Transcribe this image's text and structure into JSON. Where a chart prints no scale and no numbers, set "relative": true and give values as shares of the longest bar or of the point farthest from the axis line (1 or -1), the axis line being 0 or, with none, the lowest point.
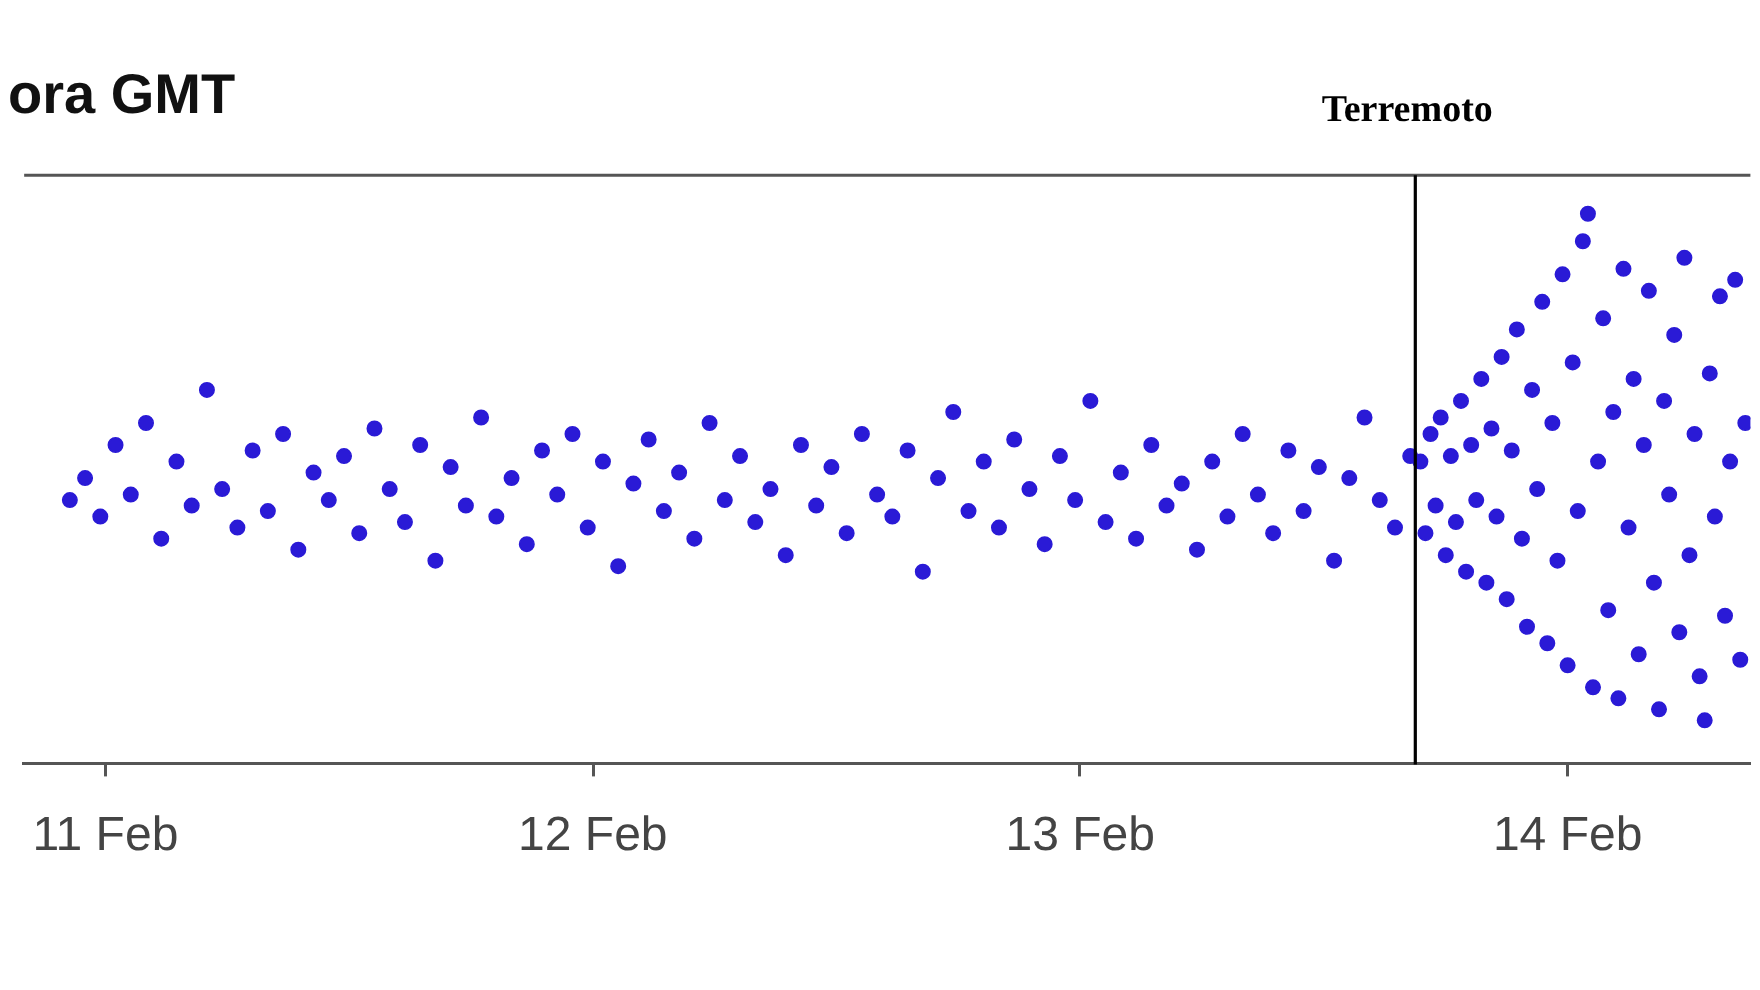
{
  "chart_data": {
    "type": "scatter",
    "title": "ora GMT",
    "x": [
      "--02-10T22:15",
      "--02-10T23:00",
      "--02-10T23:45",
      "--02-11T00:30",
      "--02-11T01:15",
      "--02-11T02:00",
      "--02-11T02:45",
      "--02-11T03:30",
      "--02-11T04:15",
      "--02-11T05:00",
      "--02-11T05:45",
      "--02-11T06:30",
      "--02-11T07:15",
      "--02-11T08:00",
      "--02-11T08:45",
      "--02-11T09:30",
      "--02-11T10:15",
      "--02-11T11:00",
      "--02-11T11:45",
      "--02-11T12:30",
      "--02-11T13:15",
      "--02-11T14:00",
      "--02-11T14:45",
      "--02-11T15:30",
      "--02-11T16:15",
      "--02-11T17:00",
      "--02-11T17:45",
      "--02-11T18:30",
      "--02-11T19:15",
      "--02-11T20:00",
      "--02-11T20:45",
      "--02-11T21:30",
      "--02-11T22:15",
      "--02-11T23:00",
      "--02-11T23:45",
      "--02-12T00:30",
      "--02-12T01:15",
      "--02-12T02:00",
      "--02-12T02:45",
      "--02-12T03:30",
      "--02-12T04:15",
      "--02-12T05:00",
      "--02-12T05:45",
      "--02-12T06:30",
      "--02-12T07:15",
      "--02-12T08:00",
      "--02-12T08:45",
      "--02-12T09:30",
      "--02-12T10:15",
      "--02-12T11:00",
      "--02-12T11:45",
      "--02-12T12:30",
      "--02-12T13:15",
      "--02-12T14:00",
      "--02-12T14:45",
      "--02-12T15:30",
      "--02-12T16:15",
      "--02-12T17:00",
      "--02-12T17:45",
      "--02-12T18:30",
      "--02-12T19:15",
      "--02-12T20:00",
      "--02-12T20:45",
      "--02-12T21:30",
      "--02-12T22:15",
      "--02-12T23:00",
      "--02-12T23:45",
      "--02-13T00:30",
      "--02-13T01:15",
      "--02-13T02:00",
      "--02-13T02:45",
      "--02-13T03:30",
      "--02-13T04:15",
      "--02-13T05:00",
      "--02-13T05:45",
      "--02-13T06:30",
      "--02-13T07:15",
      "--02-13T08:00",
      "--02-13T08:45",
      "--02-13T09:30",
      "--02-13T10:15",
      "--02-13T11:00",
      "--02-13T11:45",
      "--02-13T12:30",
      "--02-13T13:15",
      "--02-13T14:00",
      "--02-13T14:45",
      "--02-13T15:30",
      "--02-13T16:15",
      "--02-13T16:45",
      "--02-13T17:00",
      "--02-13T17:15",
      "--02-13T17:30",
      "--02-13T17:45",
      "--02-13T18:00",
      "--02-13T18:15",
      "--02-13T18:30",
      "--02-13T18:45",
      "--02-13T19:00",
      "--02-13T19:15",
      "--02-13T19:30",
      "--02-13T19:45",
      "--02-13T20:00",
      "--02-13T20:15",
      "--02-13T20:30",
      "--02-13T20:45",
      "--02-13T21:00",
      "--02-13T21:15",
      "--02-13T21:30",
      "--02-13T21:45",
      "--02-13T22:00",
      "--02-13T22:15",
      "--02-13T22:30",
      "--02-13T22:45",
      "--02-13T23:00",
      "--02-13T23:15",
      "--02-13T23:30",
      "--02-13T23:45",
      "--02-14T00:00",
      "--02-14T00:15",
      "--02-14T00:30",
      "--02-14T00:45",
      "--02-14T01:00",
      "--02-14T01:15",
      "--02-14T01:30",
      "--02-14T01:45",
      "--02-14T02:00",
      "--02-14T02:15",
      "--02-14T02:30",
      "--02-14T02:45",
      "--02-14T03:00",
      "--02-14T03:15",
      "--02-14T03:30",
      "--02-14T03:45",
      "--02-14T04:00",
      "--02-14T04:15",
      "--02-14T04:30",
      "--02-14T04:45",
      "--02-14T05:00",
      "--02-14T05:15",
      "--02-14T05:30",
      "--02-14T05:45",
      "--02-14T06:00",
      "--02-14T06:15",
      "--02-14T06:30",
      "--02-14T06:45",
      "--02-14T07:00",
      "--02-14T07:15",
      "--02-14T07:30",
      "--02-14T07:45",
      "--02-14T08:00",
      "--02-14T08:15",
      "--02-14T08:30",
      "--02-14T08:45"
    ],
    "values": [
      0.48,
      0.52,
      0.45,
      0.58,
      0.49,
      0.62,
      0.41,
      0.55,
      0.47,
      0.68,
      0.5,
      0.43,
      0.57,
      0.46,
      0.6,
      0.39,
      0.53,
      0.48,
      0.56,
      0.42,
      0.61,
      0.5,
      0.44,
      0.58,
      0.37,
      0.54,
      0.47,
      0.63,
      0.45,
      0.52,
      0.4,
      0.57,
      0.49,
      0.6,
      0.43,
      0.55,
      0.36,
      0.51,
      0.59,
      0.46,
      0.53,
      0.41,
      0.62,
      0.48,
      0.56,
      0.44,
      0.5,
      0.38,
      0.58,
      0.47,
      0.54,
      0.42,
      0.6,
      0.49,
      0.45,
      0.57,
      0.35,
      0.52,
      0.64,
      0.46,
      0.55,
      0.43,
      0.59,
      0.5,
      0.4,
      0.56,
      0.48,
      0.66,
      0.44,
      0.53,
      0.41,
      0.58,
      0.47,
      0.51,
      0.39,
      0.55,
      0.45,
      0.6,
      0.49,
      0.42,
      0.57,
      0.46,
      0.54,
      0.37,
      0.52,
      0.63,
      0.48,
      0.43,
      0.56,
      0.55,
      0.42,
      0.6,
      0.47,
      0.63,
      0.38,
      0.56,
      0.44,
      0.66,
      0.35,
      0.58,
      0.48,
      0.7,
      0.33,
      0.61,
      0.45,
      0.74,
      0.3,
      0.57,
      0.79,
      0.41,
      0.25,
      0.68,
      0.5,
      0.84,
      0.22,
      0.62,
      0.37,
      0.89,
      0.18,
      0.73,
      0.46,
      0.95,
      1.0,
      0.14,
      0.55,
      0.81,
      0.28,
      0.64,
      0.12,
      0.9,
      0.43,
      0.7,
      0.2,
      0.58,
      0.86,
      0.33,
      0.1,
      0.66,
      0.49,
      0.78,
      0.24,
      0.92,
      0.38,
      0.6,
      0.16,
      0.08,
      0.71,
      0.45,
      0.85,
      0.27,
      0.55,
      0.88,
      0.19,
      0.62
    ],
    "color": "#2a1ad6",
    "relative": true,
    "marker": "circle",
    "xlim": [
      "--02-10T20:00",
      "--02-14T09:00"
    ],
    "xticks": [
      {
        "value": "--02-11",
        "label": "11 Feb"
      },
      {
        "value": "--02-12",
        "label": "12 Feb"
      },
      {
        "value": "--02-13",
        "label": "13 Feb"
      },
      {
        "value": "--02-14",
        "label": "14 Feb"
      }
    ],
    "tick_labels": "x",
    "ref_lines": [
      {
        "axis": "x",
        "value": "--02-13T16:30",
        "label": "Terremoto",
        "color": "#000000"
      }
    ]
  }
}
